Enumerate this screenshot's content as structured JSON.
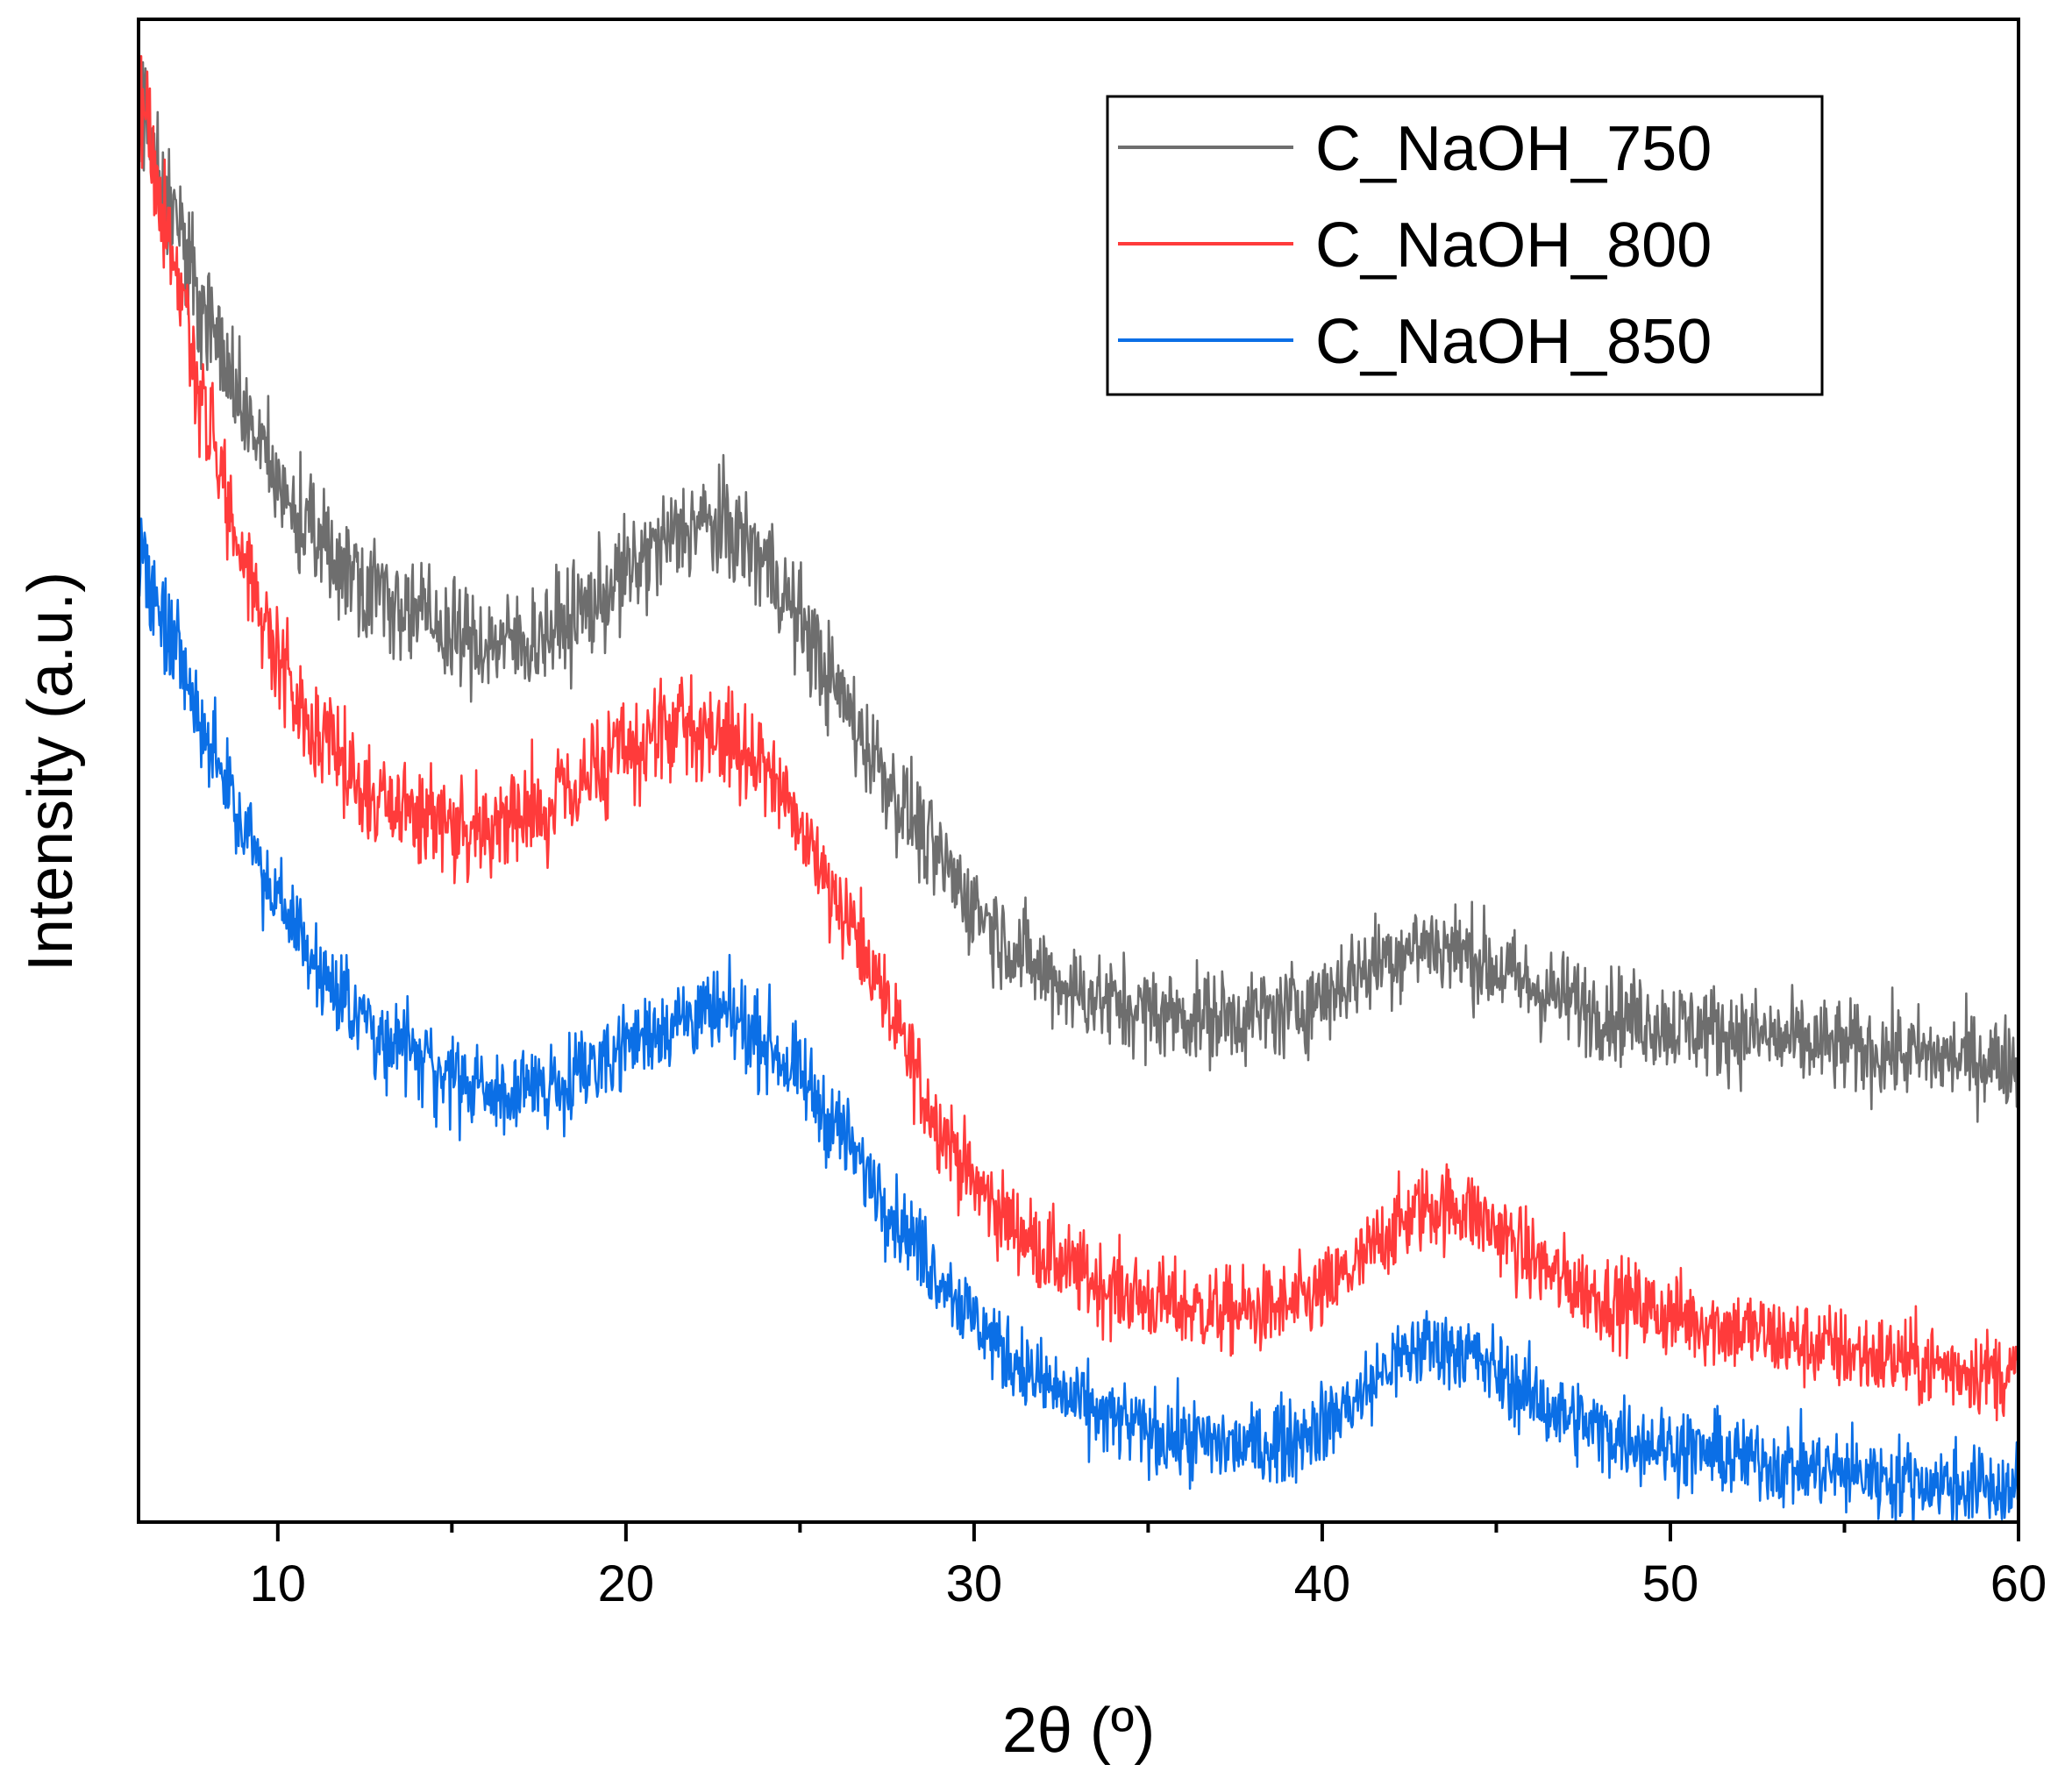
{
  "chart_data": {
    "type": "line",
    "title": "",
    "xlabel": "2θ (º)",
    "ylabel": "Intensity (a.u.)",
    "xlim": [
      6,
      60
    ],
    "ylim": [
      0,
      100
    ],
    "xticks": [
      10,
      20,
      30,
      40,
      50,
      60
    ],
    "xtick_labels": [
      "10",
      "20",
      "30",
      "40",
      "50",
      "60"
    ],
    "minor_xticks": [
      15,
      25,
      35,
      45,
      55
    ],
    "yticks_shown": false,
    "legend_position": "top-right",
    "series": [
      {
        "name": "C_NaOH_750",
        "color": "#6e6e6e",
        "noise": 1.6,
        "x": [
          6,
          7,
          8,
          9,
          10,
          11,
          12,
          13,
          14,
          15,
          16,
          17,
          18,
          19,
          20,
          21,
          22,
          23,
          24,
          25,
          26,
          27,
          28,
          29,
          30,
          31,
          32,
          33,
          34,
          35,
          36,
          37,
          38,
          39,
          40,
          41,
          42,
          43,
          44,
          45,
          46,
          47,
          48,
          49,
          50,
          52,
          54,
          56,
          58,
          60
        ],
        "y": [
          95,
          87,
          80,
          74,
          69,
          65.5,
          63.5,
          62,
          60.5,
          59,
          58.5,
          58.5,
          59.5,
          61,
          63,
          65,
          66.5,
          66,
          64,
          60,
          55.5,
          51.5,
          47.5,
          44,
          41,
          38.5,
          36.5,
          35.3,
          34.5,
          34,
          33.7,
          33.6,
          33.7,
          34,
          35,
          36.5,
          37.8,
          38.5,
          38,
          36.8,
          35.6,
          34.8,
          34,
          33.5,
          33.1,
          32.5,
          31.8,
          31.3,
          30.9,
          30.6
        ]
      },
      {
        "name": "C_NaOH_800",
        "color": "#ff3b3b",
        "noise": 1.6,
        "x": [
          6,
          7,
          8,
          9,
          10,
          11,
          12,
          13,
          14,
          15,
          16,
          17,
          18,
          19,
          20,
          21,
          22,
          23,
          24,
          25,
          26,
          27,
          28,
          29,
          30,
          31,
          32,
          33,
          34,
          35,
          36,
          37,
          38,
          39,
          40,
          41,
          42,
          43,
          44,
          45,
          46,
          47,
          48,
          49,
          50,
          52,
          54,
          56,
          58,
          60
        ],
        "y": [
          95,
          84,
          73,
          64,
          57.5,
          53,
          50,
          48,
          47,
          46.5,
          46.5,
          47,
          48,
          49.5,
          51,
          52.5,
          53,
          52,
          50,
          46.5,
          42,
          37,
          31.5,
          26.5,
          22.5,
          20,
          18,
          16.5,
          15.5,
          14.8,
          14.3,
          14,
          14,
          14.3,
          15.2,
          17,
          19.5,
          21,
          21,
          19.5,
          17.5,
          16,
          15,
          14.4,
          13.8,
          12.8,
          11.8,
          11,
          10.3,
          9.8
        ]
      },
      {
        "name": "C_NaOH_850",
        "color": "#0b6fe6",
        "noise": 1.5,
        "x": [
          6,
          7,
          8,
          9,
          10,
          11,
          12,
          13,
          14,
          15,
          16,
          17,
          18,
          19,
          20,
          21,
          22,
          23,
          24,
          25,
          26,
          27,
          28,
          29,
          30,
          31,
          32,
          33,
          34,
          35,
          36,
          37,
          38,
          39,
          40,
          41,
          42,
          43,
          44,
          45,
          46,
          47,
          48,
          49,
          50,
          52,
          54,
          56,
          58,
          60
        ],
        "y": [
          64,
          58,
          52,
          46.5,
          41.5,
          37.5,
          34.5,
          32.5,
          31,
          29.5,
          28.5,
          28.5,
          29.3,
          30.5,
          31.8,
          33,
          33.8,
          33.5,
          32,
          29.5,
          26.5,
          23,
          19.5,
          16.5,
          13.5,
          11,
          9.2,
          7.8,
          6.8,
          6,
          5.5,
          5.2,
          5,
          5.5,
          6.5,
          8.2,
          10.5,
          11.8,
          11.5,
          10,
          8.3,
          7,
          6.1,
          5.5,
          5,
          4.3,
          3.6,
          3,
          2.5,
          2.1
        ]
      }
    ]
  }
}
